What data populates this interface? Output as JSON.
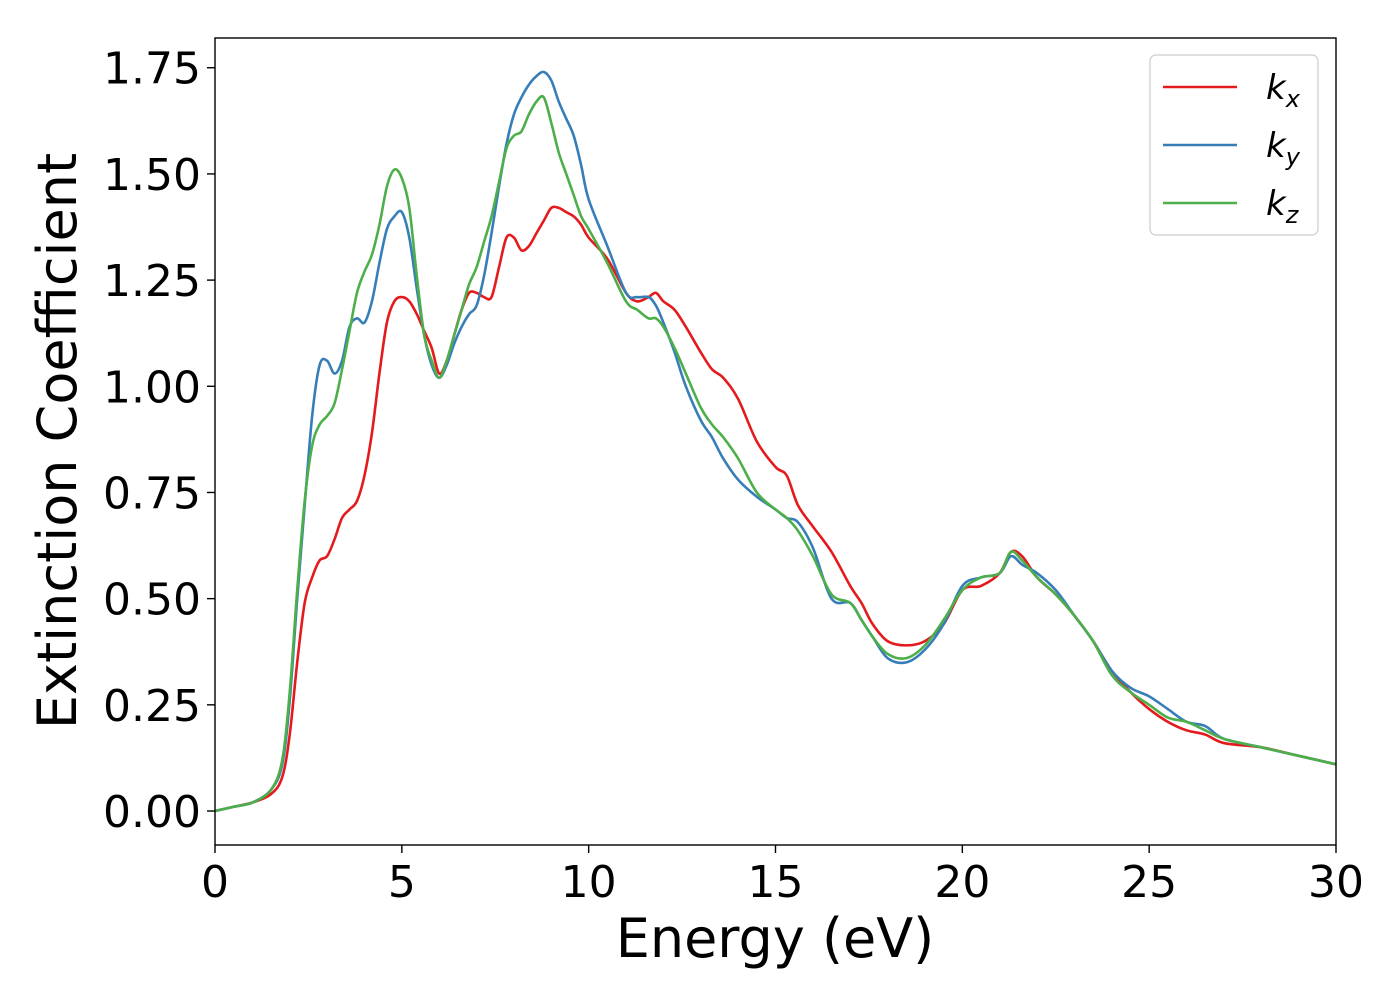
{
  "chart_data": {
    "type": "line",
    "title": "",
    "xlabel": "Energy (eV)",
    "ylabel": "Extinction Coefficient",
    "xlim": [
      0,
      30
    ],
    "ylim": [
      -0.08,
      1.82
    ],
    "xticks": [
      0,
      5,
      10,
      15,
      20,
      25,
      30
    ],
    "xtick_labels": [
      "0",
      "5",
      "10",
      "15",
      "20",
      "25",
      "30"
    ],
    "yticks": [
      0,
      0.25,
      0.5,
      0.75,
      1.0,
      1.25,
      1.5,
      1.75
    ],
    "ytick_labels": [
      "0.00",
      "0.25",
      "0.50",
      "0.75",
      "1.00",
      "1.25",
      "1.50",
      "1.75"
    ],
    "grid": false,
    "legend_position": "top-right",
    "series": [
      {
        "base": "k",
        "subscript": "x",
        "color": "#e41a1c",
        "x": [
          0,
          0.5,
          1.0,
          1.5,
          1.8,
          2.0,
          2.2,
          2.4,
          2.6,
          2.8,
          3.0,
          3.2,
          3.4,
          3.6,
          3.8,
          4.0,
          4.2,
          4.4,
          4.6,
          4.8,
          5.0,
          5.2,
          5.4,
          5.6,
          5.8,
          6.0,
          6.2,
          6.4,
          6.6,
          6.8,
          7.0,
          7.2,
          7.4,
          7.6,
          7.8,
          8.0,
          8.2,
          8.4,
          8.6,
          8.8,
          9.0,
          9.2,
          9.4,
          9.6,
          9.8,
          10.0,
          10.5,
          11.0,
          11.3,
          11.6,
          11.8,
          12.0,
          12.3,
          12.6,
          13.0,
          13.3,
          13.6,
          14.0,
          14.5,
          15.0,
          15.3,
          15.6,
          16.0,
          16.5,
          17.0,
          17.3,
          17.6,
          18.0,
          18.5,
          19.0,
          19.5,
          20.0,
          20.5,
          21.0,
          21.3,
          21.6,
          22.0,
          22.5,
          23.0,
          23.5,
          24.0,
          24.5,
          25.0,
          25.5,
          26.0,
          26.5,
          27.0,
          28.0,
          29.0,
          30.0
        ],
        "y": [
          0.0,
          0.01,
          0.02,
          0.04,
          0.08,
          0.18,
          0.35,
          0.49,
          0.55,
          0.59,
          0.6,
          0.64,
          0.69,
          0.71,
          0.73,
          0.79,
          0.89,
          1.03,
          1.15,
          1.2,
          1.21,
          1.2,
          1.17,
          1.13,
          1.09,
          1.03,
          1.06,
          1.12,
          1.18,
          1.22,
          1.22,
          1.21,
          1.21,
          1.28,
          1.35,
          1.35,
          1.32,
          1.33,
          1.36,
          1.39,
          1.42,
          1.42,
          1.41,
          1.4,
          1.38,
          1.35,
          1.3,
          1.22,
          1.2,
          1.21,
          1.22,
          1.2,
          1.18,
          1.14,
          1.08,
          1.04,
          1.02,
          0.97,
          0.87,
          0.81,
          0.79,
          0.72,
          0.67,
          0.61,
          0.53,
          0.49,
          0.44,
          0.4,
          0.39,
          0.4,
          0.44,
          0.52,
          0.53,
          0.56,
          0.61,
          0.6,
          0.55,
          0.51,
          0.46,
          0.4,
          0.33,
          0.28,
          0.24,
          0.21,
          0.19,
          0.18,
          0.16,
          0.15,
          0.13,
          0.11
        ]
      },
      {
        "base": "k",
        "subscript": "y",
        "color": "#377eb8",
        "x": [
          0,
          0.5,
          1.0,
          1.5,
          1.8,
          2.0,
          2.2,
          2.4,
          2.6,
          2.8,
          3.0,
          3.2,
          3.4,
          3.6,
          3.8,
          4.0,
          4.2,
          4.4,
          4.6,
          4.8,
          5.0,
          5.2,
          5.4,
          5.6,
          5.8,
          6.0,
          6.2,
          6.4,
          6.6,
          6.8,
          7.0,
          7.2,
          7.4,
          7.6,
          7.8,
          8.0,
          8.2,
          8.4,
          8.6,
          8.8,
          9.0,
          9.2,
          9.4,
          9.6,
          9.8,
          10.0,
          10.5,
          11.0,
          11.3,
          11.6,
          11.8,
          12.0,
          12.3,
          12.6,
          13.0,
          13.3,
          13.6,
          14.0,
          14.5,
          15.0,
          15.3,
          15.6,
          16.0,
          16.5,
          17.0,
          17.3,
          17.6,
          18.0,
          18.5,
          19.0,
          19.5,
          20.0,
          20.5,
          21.0,
          21.3,
          21.6,
          22.0,
          22.5,
          23.0,
          23.5,
          24.0,
          24.5,
          25.0,
          25.5,
          26.0,
          26.5,
          27.0,
          28.0,
          29.0,
          30.0
        ],
        "y": [
          0.0,
          0.01,
          0.02,
          0.05,
          0.11,
          0.26,
          0.5,
          0.72,
          0.93,
          1.05,
          1.06,
          1.03,
          1.06,
          1.14,
          1.16,
          1.15,
          1.2,
          1.29,
          1.37,
          1.4,
          1.41,
          1.35,
          1.23,
          1.12,
          1.05,
          1.02,
          1.05,
          1.1,
          1.14,
          1.17,
          1.19,
          1.26,
          1.36,
          1.47,
          1.57,
          1.64,
          1.68,
          1.71,
          1.73,
          1.74,
          1.72,
          1.67,
          1.63,
          1.59,
          1.52,
          1.44,
          1.33,
          1.22,
          1.21,
          1.21,
          1.19,
          1.15,
          1.08,
          1.0,
          0.92,
          0.88,
          0.83,
          0.78,
          0.74,
          0.71,
          0.69,
          0.68,
          0.62,
          0.5,
          0.49,
          0.45,
          0.41,
          0.36,
          0.35,
          0.38,
          0.44,
          0.53,
          0.55,
          0.56,
          0.6,
          0.58,
          0.56,
          0.52,
          0.46,
          0.4,
          0.33,
          0.29,
          0.27,
          0.24,
          0.21,
          0.2,
          0.17,
          0.15,
          0.13,
          0.11
        ]
      },
      {
        "base": "k",
        "subscript": "z",
        "color": "#4daf4a",
        "x": [
          0,
          0.5,
          1.0,
          1.5,
          1.8,
          2.0,
          2.2,
          2.4,
          2.6,
          2.8,
          3.0,
          3.2,
          3.4,
          3.6,
          3.8,
          4.0,
          4.2,
          4.4,
          4.6,
          4.8,
          5.0,
          5.2,
          5.4,
          5.6,
          5.8,
          6.0,
          6.2,
          6.4,
          6.6,
          6.8,
          7.0,
          7.2,
          7.4,
          7.6,
          7.8,
          8.0,
          8.2,
          8.4,
          8.6,
          8.8,
          9.0,
          9.2,
          9.4,
          9.6,
          9.8,
          10.0,
          10.5,
          11.0,
          11.3,
          11.6,
          11.8,
          12.0,
          12.3,
          12.6,
          13.0,
          13.3,
          13.6,
          14.0,
          14.5,
          15.0,
          15.3,
          15.6,
          16.0,
          16.5,
          17.0,
          17.3,
          17.6,
          18.0,
          18.5,
          19.0,
          19.5,
          20.0,
          20.5,
          21.0,
          21.3,
          21.6,
          22.0,
          22.5,
          23.0,
          23.5,
          24.0,
          24.5,
          25.0,
          25.5,
          26.0,
          26.5,
          27.0,
          28.0,
          29.0,
          30.0
        ],
        "y": [
          0.0,
          0.01,
          0.02,
          0.05,
          0.12,
          0.28,
          0.52,
          0.73,
          0.86,
          0.91,
          0.93,
          0.96,
          1.04,
          1.13,
          1.22,
          1.27,
          1.31,
          1.38,
          1.47,
          1.51,
          1.49,
          1.42,
          1.26,
          1.12,
          1.06,
          1.02,
          1.06,
          1.12,
          1.18,
          1.24,
          1.28,
          1.34,
          1.4,
          1.48,
          1.56,
          1.59,
          1.6,
          1.64,
          1.67,
          1.68,
          1.62,
          1.55,
          1.5,
          1.45,
          1.4,
          1.37,
          1.29,
          1.2,
          1.18,
          1.16,
          1.16,
          1.14,
          1.09,
          1.03,
          0.95,
          0.91,
          0.88,
          0.83,
          0.75,
          0.71,
          0.69,
          0.66,
          0.6,
          0.51,
          0.49,
          0.45,
          0.41,
          0.37,
          0.36,
          0.39,
          0.45,
          0.52,
          0.55,
          0.56,
          0.61,
          0.59,
          0.55,
          0.51,
          0.46,
          0.4,
          0.32,
          0.28,
          0.25,
          0.22,
          0.21,
          0.19,
          0.17,
          0.15,
          0.13,
          0.11
        ]
      }
    ]
  }
}
